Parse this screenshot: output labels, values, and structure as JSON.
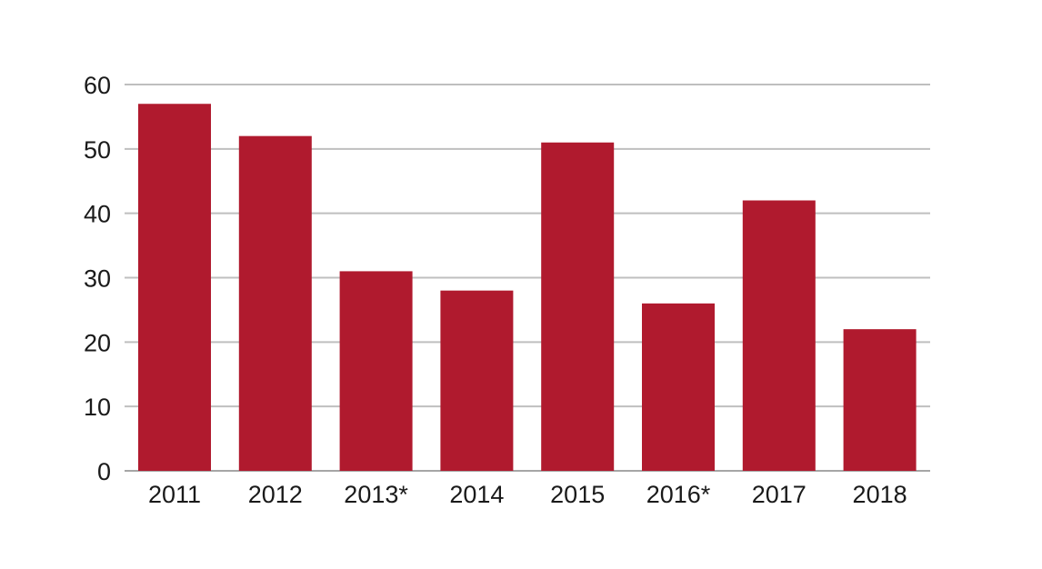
{
  "chart_data": {
    "type": "bar",
    "title": "",
    "xlabel": "",
    "ylabel": "",
    "categories": [
      "2011",
      "2012",
      "2013*",
      "2014",
      "2015",
      "2016*",
      "2017",
      "2018"
    ],
    "values": [
      57,
      52,
      31,
      28,
      51,
      26,
      42,
      22
    ],
    "ylim": [
      0,
      60
    ],
    "yticks": [
      0,
      10,
      20,
      30,
      40,
      50,
      60
    ],
    "grid": true,
    "legend": "none",
    "colors": {
      "bar": "#b01a2e",
      "grid": "#bfbfbf",
      "text": "#1a1a1a"
    }
  }
}
